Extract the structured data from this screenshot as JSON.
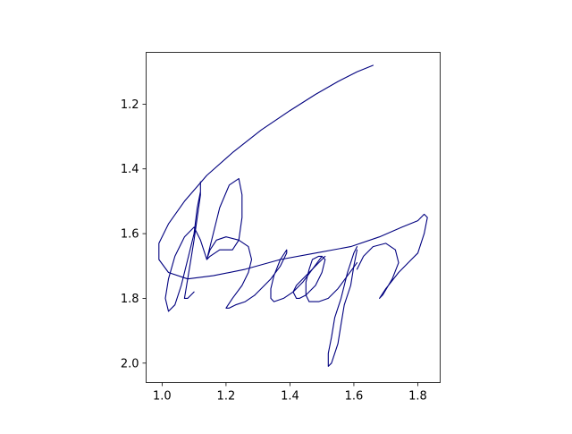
{
  "chart_data": {
    "type": "line",
    "title": "",
    "xlabel": "",
    "ylabel": "",
    "xlim": [
      0.95,
      1.87
    ],
    "ylim": [
      2.06,
      1.04
    ],
    "y_inverted": true,
    "grid": false,
    "x_ticks": [
      "1.0",
      "1.2",
      "1.4",
      "1.6",
      "1.8"
    ],
    "x_tick_values": [
      1.0,
      1.2,
      1.4,
      1.6,
      1.8
    ],
    "y_ticks": [
      "1.2",
      "1.4",
      "1.6",
      "1.8",
      "2.0"
    ],
    "y_tick_values": [
      1.2,
      1.4,
      1.6,
      1.8,
      2.0
    ],
    "line_color": "#00007f",
    "strokes": [
      {
        "x": [
          1.66,
          1.61,
          1.55,
          1.48,
          1.4,
          1.31,
          1.22,
          1.14,
          1.07,
          1.02,
          0.99,
          0.99,
          1.02,
          1.08,
          1.16,
          1.26,
          1.37,
          1.48,
          1.59,
          1.68,
          1.75,
          1.8,
          1.82,
          1.83,
          1.82,
          1.8,
          1.8,
          1.78,
          1.74,
          1.7,
          1.68,
          1.69,
          1.72,
          1.74,
          1.73,
          1.7,
          1.66,
          1.63,
          1.61
        ],
        "y": [
          1.08,
          1.1,
          1.13,
          1.17,
          1.22,
          1.28,
          1.35,
          1.42,
          1.5,
          1.57,
          1.63,
          1.68,
          1.72,
          1.74,
          1.73,
          1.71,
          1.68,
          1.66,
          1.64,
          1.61,
          1.58,
          1.56,
          1.54,
          1.55,
          1.6,
          1.66,
          1.66,
          1.68,
          1.72,
          1.77,
          1.8,
          1.79,
          1.74,
          1.69,
          1.65,
          1.63,
          1.64,
          1.67,
          1.71
        ]
      },
      {
        "x": [
          1.61,
          1.6,
          1.59,
          1.58,
          1.57,
          1.56,
          1.54,
          1.53,
          1.52,
          1.52,
          1.53,
          1.55,
          1.56,
          1.57,
          1.59,
          1.6,
          1.61
        ],
        "y": [
          1.64,
          1.66,
          1.69,
          1.72,
          1.76,
          1.8,
          1.86,
          1.92,
          1.97,
          2.01,
          2.0,
          1.94,
          1.88,
          1.82,
          1.76,
          1.7,
          1.65
        ]
      },
      {
        "x": [
          1.61,
          1.58,
          1.55,
          1.52,
          1.49,
          1.46,
          1.45,
          1.45,
          1.46,
          1.47,
          1.49,
          1.5,
          1.51,
          1.5,
          1.48,
          1.45,
          1.43,
          1.42,
          1.41,
          1.42,
          1.44,
          1.46,
          1.48,
          1.5,
          1.51
        ],
        "y": [
          1.69,
          1.73,
          1.77,
          1.8,
          1.81,
          1.81,
          1.79,
          1.75,
          1.71,
          1.68,
          1.67,
          1.67,
          1.68,
          1.72,
          1.76,
          1.79,
          1.8,
          1.8,
          1.78,
          1.76,
          1.74,
          1.72,
          1.7,
          1.68,
          1.67
        ]
      },
      {
        "x": [
          1.5,
          1.47,
          1.44,
          1.41,
          1.38,
          1.35,
          1.34,
          1.34,
          1.35,
          1.37,
          1.39,
          1.39,
          1.37,
          1.34,
          1.31,
          1.29
        ],
        "y": [
          1.67,
          1.71,
          1.75,
          1.78,
          1.8,
          1.81,
          1.8,
          1.77,
          1.73,
          1.68,
          1.65,
          1.66,
          1.7,
          1.74,
          1.77,
          1.79
        ]
      },
      {
        "x": [
          1.29,
          1.26,
          1.23,
          1.21,
          1.2,
          1.22,
          1.25,
          1.27,
          1.28,
          1.27,
          1.24,
          1.2,
          1.17,
          1.15,
          1.14,
          1.15,
          1.18,
          1.22,
          1.24,
          1.25,
          1.25,
          1.24,
          1.21,
          1.18,
          1.16,
          1.14
        ],
        "y": [
          1.79,
          1.81,
          1.82,
          1.83,
          1.83,
          1.8,
          1.76,
          1.72,
          1.68,
          1.64,
          1.62,
          1.61,
          1.62,
          1.65,
          1.68,
          1.67,
          1.65,
          1.65,
          1.62,
          1.55,
          1.48,
          1.43,
          1.45,
          1.52,
          1.6,
          1.68
        ]
      },
      {
        "x": [
          1.14,
          1.12,
          1.1,
          1.07,
          1.04,
          1.02,
          1.01,
          1.02,
          1.04,
          1.06,
          1.08,
          1.1,
          1.11,
          1.12,
          1.12,
          1.12,
          1.11,
          1.1,
          1.09,
          1.08,
          1.07,
          1.08,
          1.1
        ],
        "y": [
          1.68,
          1.62,
          1.58,
          1.61,
          1.67,
          1.74,
          1.8,
          1.84,
          1.82,
          1.76,
          1.68,
          1.6,
          1.52,
          1.47,
          1.44,
          1.48,
          1.55,
          1.62,
          1.68,
          1.74,
          1.8,
          1.8,
          1.78
        ]
      }
    ]
  }
}
